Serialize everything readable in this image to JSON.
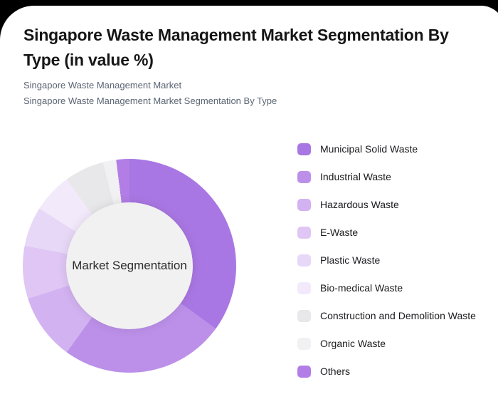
{
  "page": {
    "title": "Singapore Waste Management Market Segmentation By Type (in value %)",
    "subtitle_line1": "Singapore Waste Management Market",
    "subtitle_line2": "Singapore Waste Management Market Segmentation By Type"
  },
  "colors": {
    "page_background": "#000000",
    "card_background": "#ffffff",
    "title_text": "#161616",
    "subtitle_text": "#5a6472",
    "center_circle": "#f1f1f1",
    "center_text": "#2b2b2b"
  },
  "chart_data": {
    "type": "pie",
    "variant": "donut",
    "title": "Singapore Waste Management Market Segmentation By Type (in value %)",
    "center_label": "Market Segmentation",
    "values_unit": "%",
    "start_angle_deg": 0,
    "direction": "clockwise",
    "legend_position": "right",
    "series": [
      {
        "name": "Municipal Solid Waste",
        "value": 35,
        "color": "#a977e3"
      },
      {
        "name": "Industrial Waste",
        "value": 25,
        "color": "#bc90e9"
      },
      {
        "name": "Hazardous Waste",
        "value": 10,
        "color": "#d2b2f0"
      },
      {
        "name": "E-Waste",
        "value": 8,
        "color": "#dfc6f4"
      },
      {
        "name": "Plastic Waste",
        "value": 6,
        "color": "#e8d8f7"
      },
      {
        "name": "Bio-medical Waste",
        "value": 6,
        "color": "#f2e9fb"
      },
      {
        "name": "Construction and Demolition Waste",
        "value": 6,
        "color": "#e8e7e9"
      },
      {
        "name": "Organic Waste",
        "value": 2,
        "color": "#f1f0f2"
      },
      {
        "name": "Others",
        "value": 2,
        "color": "#b27ee6"
      }
    ]
  }
}
